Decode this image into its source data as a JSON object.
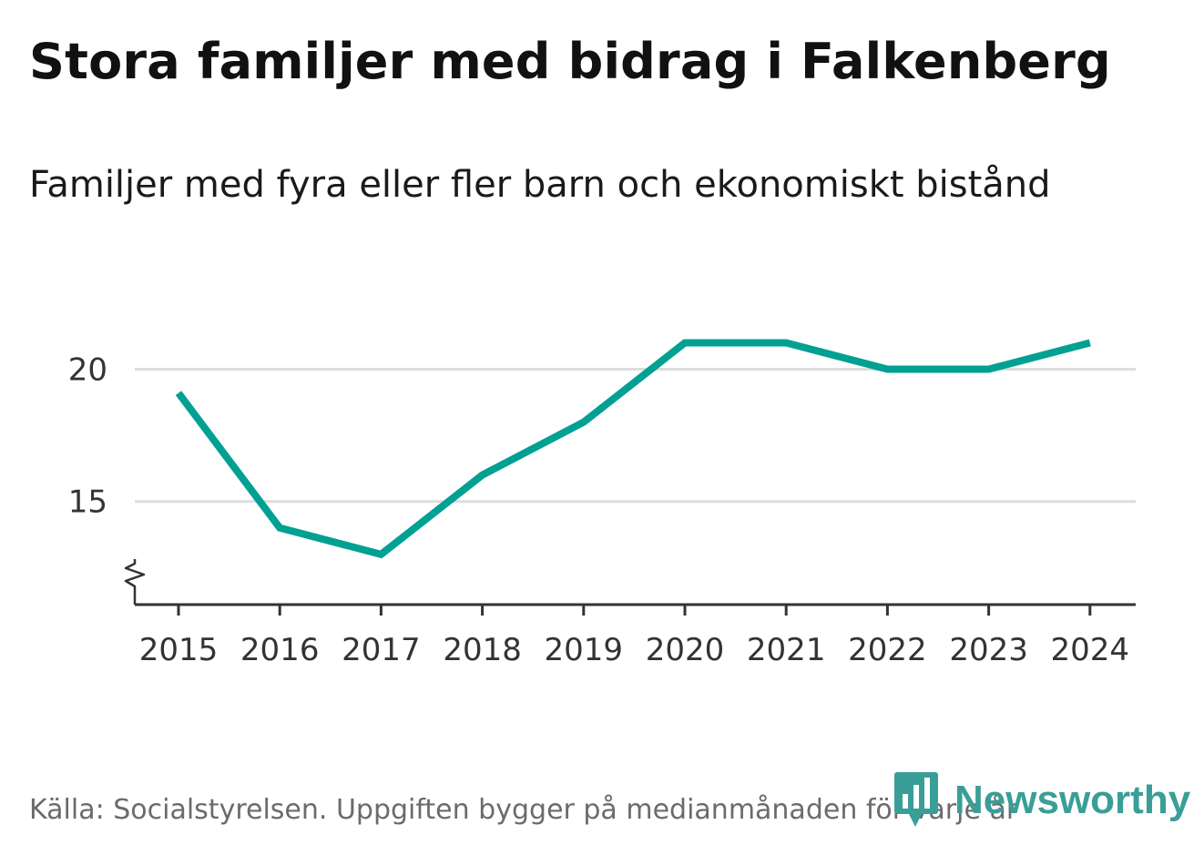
{
  "chart_data": {
    "type": "line",
    "title": "Stora familjer med bidrag i Falkenberg",
    "subtitle": "Familjer med fyra eller fler barn och ekonomiskt bistånd",
    "xlabel": "",
    "ylabel": "",
    "x": [
      "2015",
      "2016",
      "2017",
      "2018",
      "2019",
      "2020",
      "2021",
      "2022",
      "2023",
      "2024"
    ],
    "series": [
      {
        "values": [
          19.1,
          14,
          13,
          16,
          18,
          21,
          21,
          20,
          20,
          21
        ],
        "color": "#00a093"
      }
    ],
    "yticks": [
      15,
      20
    ],
    "ytick_labels": [
      "15",
      "20"
    ],
    "ylim": [
      11.1,
      22.6
    ],
    "axis_break": true,
    "grid": "horizontal",
    "gridline_color": "#dddddd",
    "axis_color": "#333333"
  },
  "source": "Källa: Socialstyrelsen. Uppgiften bygger på medianmånaden för varje år",
  "logo": {
    "text": "Newsworthy",
    "color": "#3a9e98",
    "icon": "newsworthy-bars-icon"
  }
}
